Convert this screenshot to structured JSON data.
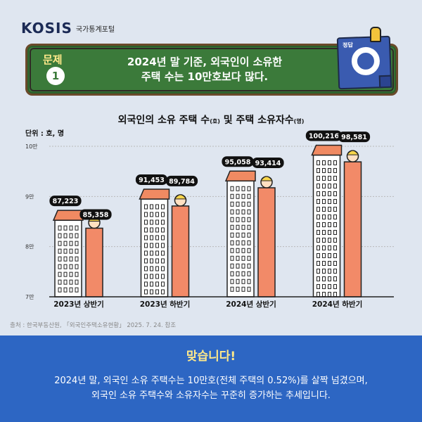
{
  "logo": {
    "name": "KOSIS",
    "sub": "국가통계포털"
  },
  "question": {
    "label": "문제",
    "number": "1",
    "line1": "2024년 말 기준, 외국인이 소유한",
    "line2": "주택 수는 10만호보다 많다."
  },
  "answer_card": {
    "label": "정답"
  },
  "chart_title": {
    "main": "외국인의 소유 주택 수",
    "houses_unit": "(호)",
    "mid": " 및 주택 소유자수",
    "owners_unit": "(명)"
  },
  "unit_label": "단위 : 호, 명",
  "chart_data": {
    "type": "bar",
    "categories": [
      "2023년 상반기",
      "2023년 하반기",
      "2024년 상반기",
      "2024년 하반기"
    ],
    "series": [
      {
        "values": [
          87223,
          91453,
          95058,
          100216
        ]
      },
      {
        "values": [
          85358,
          89784,
          93414,
          98581
        ]
      }
    ],
    "value_labels": [
      [
        "87,223",
        "91,453",
        "95,058",
        "100,216"
      ],
      [
        "85,358",
        "89,784",
        "93,414",
        "98,581"
      ]
    ],
    "yticks": [
      {
        "value": 70000,
        "label": "7만"
      },
      {
        "value": 80000,
        "label": "8만"
      },
      {
        "value": 90000,
        "label": "9만"
      },
      {
        "value": 100000,
        "label": "10만"
      }
    ],
    "ylim": [
      70000,
      100000
    ],
    "grid": true,
    "colors": {
      "building_body": "#ffffff",
      "building_roof": "#f08a62",
      "owner_bar": "#f28a68",
      "grid": "#b9b9b9",
      "label_bg": "#111111"
    }
  },
  "source": "출처 : 한국부동산원, 「외국인주택소유현황」 2025. 7. 24. 참조",
  "bottom": {
    "title": "맞습니다!",
    "line1": "2024년 말, 외국인 소유 주택수는 10만호(전체 주택의 0.52%)를 살짝 넘겼으며,",
    "line2": "외국인 소유 주택수와 소유자수는 꾸준히 증가하는 추세입니다."
  }
}
